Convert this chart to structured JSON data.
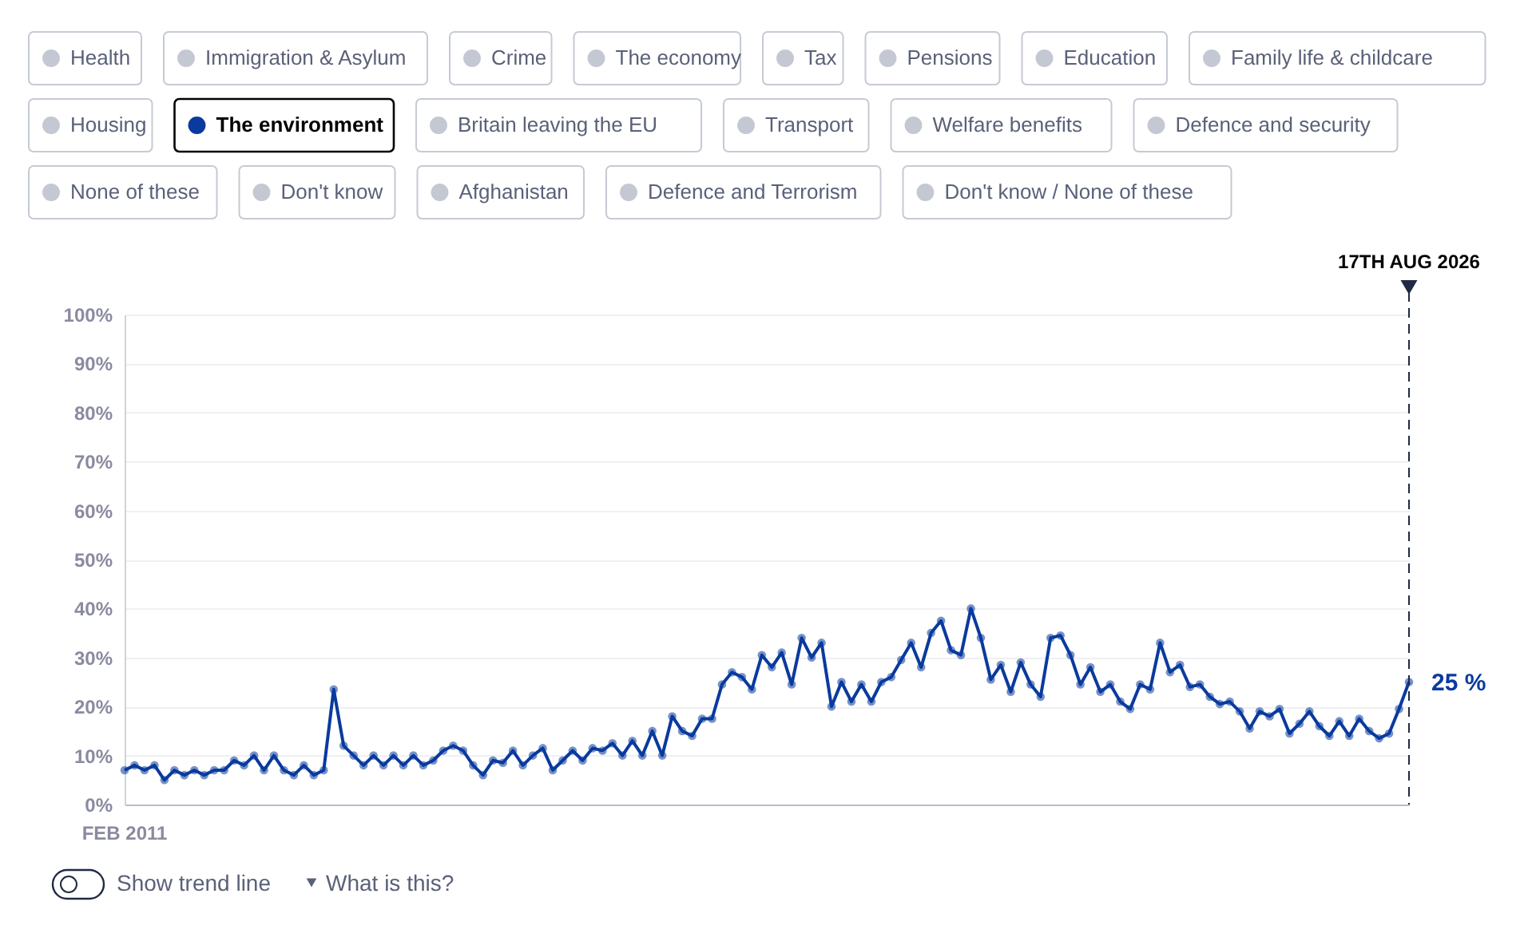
{
  "chart_data": {
    "type": "line",
    "categories": [
      null,
      null,
      null,
      null,
      null,
      null,
      null,
      null,
      null,
      null,
      null,
      null,
      null,
      null,
      null,
      null,
      null,
      null,
      null,
      null,
      null,
      null,
      null,
      null,
      null,
      null,
      null,
      null,
      null,
      null,
      null,
      null,
      null,
      null,
      null,
      null,
      null,
      null,
      null,
      null,
      null,
      null,
      null,
      null,
      null,
      null,
      null,
      null,
      null,
      null,
      null,
      null,
      null,
      null,
      null,
      null,
      null,
      null,
      null,
      null,
      null,
      null,
      null,
      null,
      null,
      null,
      null,
      null,
      null,
      null,
      null,
      null,
      null,
      null,
      null,
      null,
      null,
      null,
      null,
      null,
      null,
      null,
      null,
      null,
      null,
      null,
      null,
      null,
      null,
      null,
      null,
      null,
      null,
      null,
      null,
      null,
      null,
      null,
      null,
      null,
      null,
      null,
      null,
      null,
      null,
      null,
      null,
      null,
      null,
      null,
      null,
      null,
      null,
      null,
      null,
      null,
      null,
      null,
      null,
      null,
      null,
      null,
      null,
      null,
      null,
      null,
      null,
      null,
      null,
      null
    ],
    "series": [
      {
        "name": "The environment",
        "color": "#0a3a9e",
        "values": [
          7,
          8,
          7,
          8,
          5,
          7,
          6,
          7,
          6,
          7,
          7,
          9,
          8,
          10,
          7,
          10,
          7,
          6,
          8,
          6,
          7,
          23.5,
          12,
          10,
          8,
          10,
          8,
          10,
          8,
          10,
          8,
          9,
          11,
          12,
          11,
          8,
          6,
          9,
          8.5,
          11,
          8,
          10,
          11.5,
          7,
          9,
          11,
          9,
          11.5,
          11,
          12.5,
          10,
          13,
          10,
          15,
          10,
          18,
          15,
          14,
          17.5,
          17.5,
          24.5,
          27,
          26,
          23.5,
          30.5,
          28,
          31,
          24.5,
          34,
          30,
          33,
          20,
          25,
          21,
          24.5,
          21,
          25,
          26,
          29.5,
          33,
          28,
          35,
          37.5,
          31.5,
          30.5,
          40,
          34,
          25.5,
          28.5,
          23,
          29,
          24.5,
          22,
          34,
          34.5,
          30.5,
          24.5,
          28,
          23,
          24.5,
          21,
          19.5,
          24.5,
          23.5,
          33,
          27,
          28.5,
          24,
          24.5,
          22,
          20.5,
          21,
          19,
          15.5,
          19,
          18,
          19.5,
          14.5,
          16.5,
          19,
          16,
          14,
          17,
          14,
          17.5,
          15,
          13.5,
          14.5,
          19.5,
          25
        ]
      }
    ],
    "ylim": [
      0,
      100
    ],
    "yticks": [
      {
        "value": 0,
        "label": "0%"
      },
      {
        "value": 10,
        "label": "10%"
      },
      {
        "value": 20,
        "label": "20%"
      },
      {
        "value": 30,
        "label": "30%"
      },
      {
        "value": 40,
        "label": "40%"
      },
      {
        "value": 50,
        "label": "50%"
      },
      {
        "value": 60,
        "label": "60%"
      },
      {
        "value": 70,
        "label": "70%"
      },
      {
        "value": 80,
        "label": "80%"
      },
      {
        "value": 90,
        "label": "90%"
      },
      {
        "value": 100,
        "label": "100%"
      }
    ],
    "ref_lines": [
      {
        "axis": "x",
        "label": "17TH AUG 2026",
        "color": "#1f2a44",
        "line_style": "dashed"
      }
    ],
    "annotations": [
      "Health",
      "Immigration & Asylum",
      "Crime",
      "The economy",
      "Tax",
      "Pensions",
      "Education",
      "Family life & childcare",
      "Housing",
      "Britain leaving the EU",
      "Transport",
      "Welfare benefits",
      "Defence and security",
      "None of these",
      "Don't know",
      "Afghanistan",
      "Defence and Terrorism",
      "Don't know / None of these",
      "25 %",
      "FEB 2011",
      "Show trend line",
      "What is this?"
    ],
    "grid": "y",
    "marker": "circle",
    "line_style": "solid"
  }
}
